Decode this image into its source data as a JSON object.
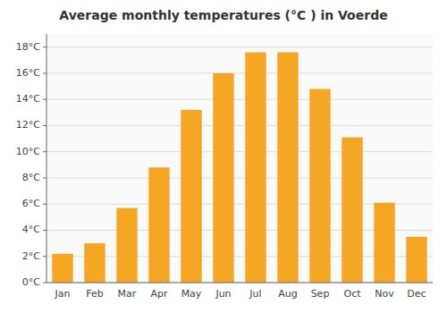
{
  "chart_data": {
    "type": "bar",
    "title": "Average monthly temperatures (°C ) in Voerde",
    "categories": [
      "Jan",
      "Feb",
      "Mar",
      "Apr",
      "May",
      "Jun",
      "Jul",
      "Aug",
      "Sep",
      "Oct",
      "Nov",
      "Dec"
    ],
    "values": [
      2.2,
      3.0,
      5.7,
      8.8,
      13.2,
      16.0,
      17.6,
      17.6,
      14.8,
      11.1,
      6.1,
      3.5
    ],
    "color": "#F5A623",
    "ylim": [
      0,
      19
    ],
    "yticks": [
      {
        "value": 0,
        "label": "0°C"
      },
      {
        "value": 2,
        "label": "2°C"
      },
      {
        "value": 4,
        "label": "4°C"
      },
      {
        "value": 6,
        "label": "6°C"
      },
      {
        "value": 8,
        "label": "8°C"
      },
      {
        "value": 10,
        "label": "10°C"
      },
      {
        "value": 12,
        "label": "12°C"
      },
      {
        "value": 14,
        "label": "14°C"
      },
      {
        "value": 16,
        "label": "16°C"
      },
      {
        "value": 18,
        "label": "18°C"
      }
    ],
    "grid": true
  }
}
